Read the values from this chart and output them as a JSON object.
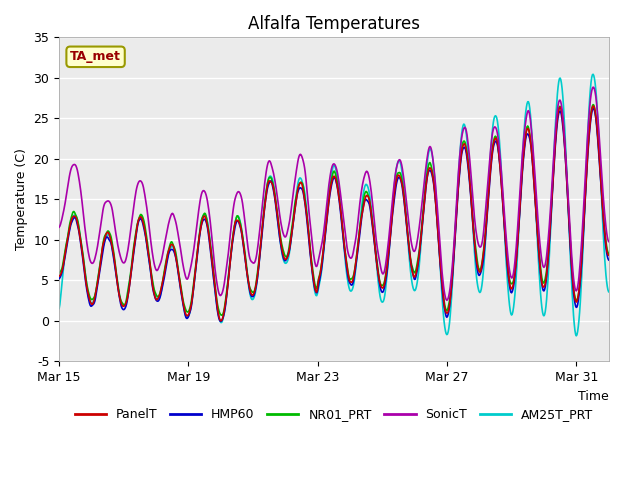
{
  "title": "Alfalfa Temperatures",
  "xlabel": "Time",
  "ylabel": "Temperature (C)",
  "ylim": [
    -5,
    35
  ],
  "xlim_days": [
    0,
    17
  ],
  "yticks": [
    -5,
    0,
    5,
    10,
    15,
    20,
    25,
    30,
    35
  ],
  "xtick_labels": [
    "Mar 15",
    "Mar 19",
    "Mar 23",
    "Mar 27",
    "Mar 31"
  ],
  "xtick_positions": [
    0,
    4,
    8,
    12,
    16
  ],
  "annotation_text": "TA_met",
  "annotation_color": "#990000",
  "annotation_bg": "#ffffcc",
  "annotation_border": "#999900",
  "fig_bg": "#ffffff",
  "plot_bg": "#ebebeb",
  "grid_color": "#ffffff",
  "series": {
    "PanelT": {
      "color": "#cc0000",
      "lw": 1.2,
      "zorder": 4
    },
    "HMP60": {
      "color": "#0000cc",
      "lw": 1.2,
      "zorder": 3
    },
    "NR01_PRT": {
      "color": "#00bb00",
      "lw": 1.2,
      "zorder": 2
    },
    "SonicT": {
      "color": "#aa00aa",
      "lw": 1.2,
      "zorder": 5
    },
    "AM25T_PRT": {
      "color": "#00cccc",
      "lw": 1.2,
      "zorder": 1
    }
  },
  "title_fontsize": 12,
  "axis_label_fontsize": 9,
  "tick_fontsize": 9,
  "legend_fontsize": 9
}
